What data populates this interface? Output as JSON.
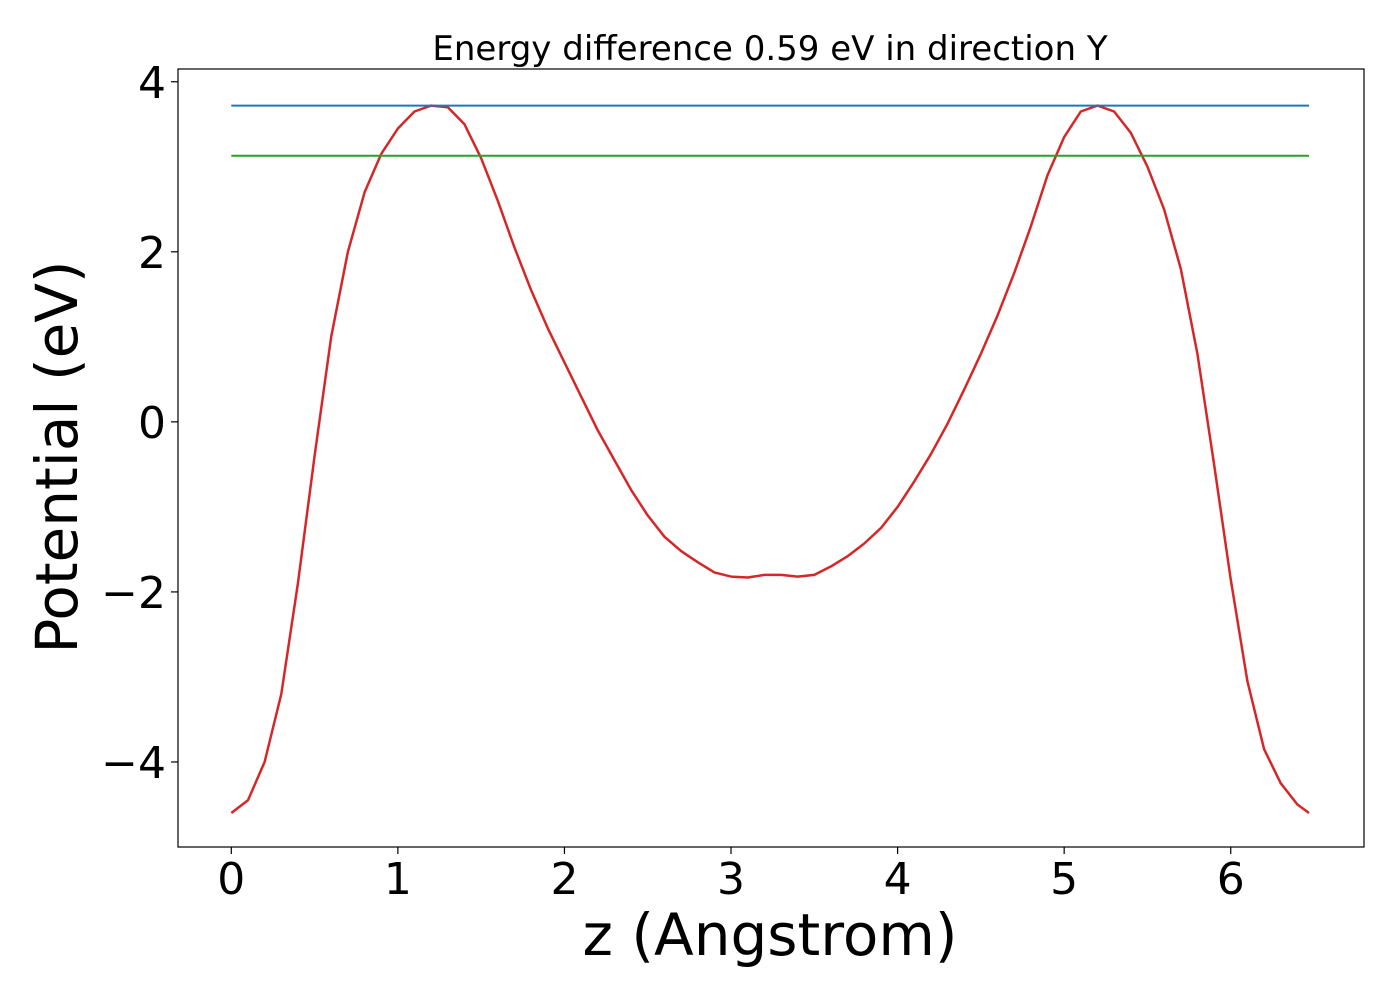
{
  "chart_data": {
    "type": "line",
    "title": "Energy difference 0.59 eV in direction Y",
    "xlabel": "z (Angstrom)",
    "ylabel": "Potential (eV)",
    "xlim": [
      -0.32,
      6.8
    ],
    "ylim": [
      -5.0,
      4.15
    ],
    "xticks": [
      0,
      1,
      2,
      3,
      4,
      5,
      6
    ],
    "yticks": [
      -4,
      -2,
      0,
      2,
      4
    ],
    "xtick_labels": [
      "0",
      "1",
      "2",
      "3",
      "4",
      "5",
      "6"
    ],
    "ytick_labels": [
      "−4",
      "−2",
      "0",
      "2",
      "4"
    ],
    "grid": false,
    "series": [
      {
        "color": "#d62728",
        "x": [
          0.0,
          0.1,
          0.2,
          0.3,
          0.4,
          0.5,
          0.6,
          0.7,
          0.8,
          0.9,
          1.0,
          1.1,
          1.2,
          1.3,
          1.4,
          1.5,
          1.6,
          1.7,
          1.8,
          1.9,
          2.0,
          2.1,
          2.2,
          2.3,
          2.4,
          2.5,
          2.6,
          2.7,
          2.8,
          2.9,
          3.0,
          3.1,
          3.2,
          3.3,
          3.4,
          3.5,
          3.6,
          3.7,
          3.8,
          3.9,
          4.0,
          4.1,
          4.2,
          4.3,
          4.4,
          4.5,
          4.6,
          4.7,
          4.8,
          4.9,
          5.0,
          5.1,
          5.2,
          5.3,
          5.4,
          5.5,
          5.6,
          5.7,
          5.8,
          5.9,
          6.0,
          6.1,
          6.2,
          6.3,
          6.4,
          6.47
        ],
        "y": [
          -4.6,
          -4.45,
          -4.0,
          -3.2,
          -1.9,
          -0.4,
          1.0,
          2.0,
          2.7,
          3.15,
          3.45,
          3.65,
          3.72,
          3.7,
          3.5,
          3.1,
          2.6,
          2.05,
          1.55,
          1.1,
          0.7,
          0.3,
          -0.1,
          -0.45,
          -0.8,
          -1.1,
          -1.35,
          -1.52,
          -1.65,
          -1.77,
          -1.82,
          -1.83,
          -1.8,
          -1.8,
          -1.82,
          -1.8,
          -1.7,
          -1.58,
          -1.43,
          -1.25,
          -1.0,
          -0.7,
          -0.38,
          -0.02,
          0.38,
          0.8,
          1.25,
          1.75,
          2.3,
          2.9,
          3.35,
          3.65,
          3.72,
          3.65,
          3.4,
          3.0,
          2.5,
          1.8,
          0.8,
          -0.5,
          -1.85,
          -3.05,
          -3.85,
          -4.25,
          -4.5,
          -4.6
        ]
      },
      {
        "color": "#1f77b4",
        "x": [
          0.0,
          6.47
        ],
        "y": [
          3.72,
          3.72
        ]
      },
      {
        "color": "#2ca02c",
        "x": [
          0.0,
          6.47
        ],
        "y": [
          3.13,
          3.13
        ]
      }
    ]
  }
}
